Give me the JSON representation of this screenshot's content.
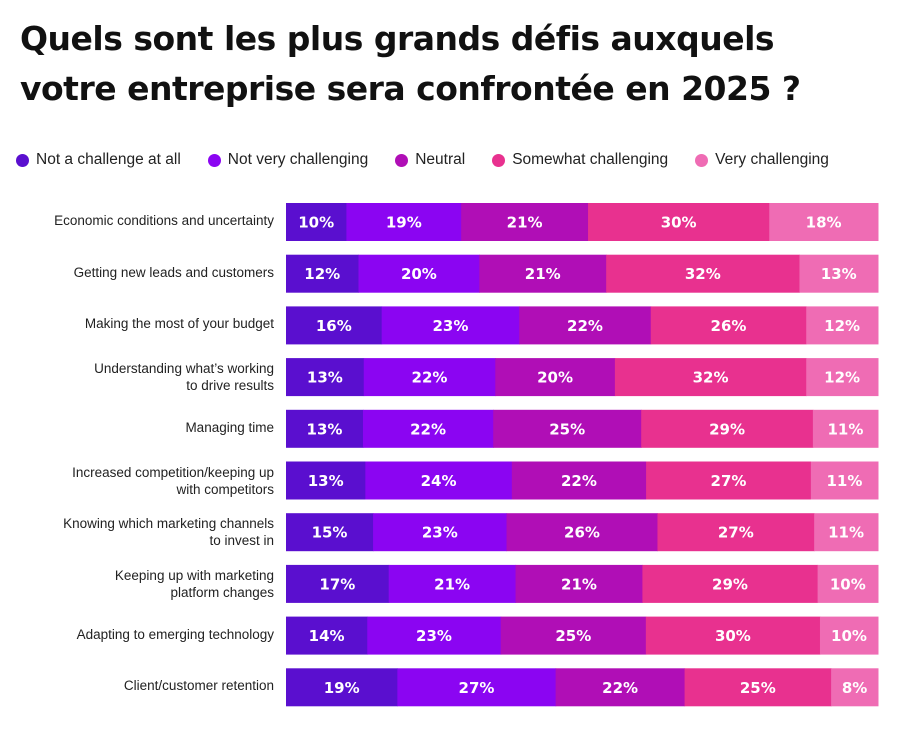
{
  "title_line1": "Quels sont les plus grands défis auxquels",
  "title_line2": "votre entreprise sera confrontée en 2025 ?",
  "chart_data": {
    "type": "bar",
    "orientation": "horizontal",
    "stacked": true,
    "legend_position": "top",
    "grid": false,
    "categories": [
      "Economic conditions and uncertainty",
      "Getting new leads and customers",
      "Making the most of your budget",
      "Understanding what’s working to drive results",
      "Managing time",
      "Increased competition/keeping up with competitors",
      "Knowing which marketing channels to invest in",
      "Keeping up with marketing platform changes",
      "Adapting to emerging technology",
      "Client/customer retention"
    ],
    "series": [
      {
        "name": "Not a challenge at all",
        "color": "#5a0fcf",
        "values": [
          10,
          12,
          16,
          13,
          13,
          13,
          15,
          17,
          14,
          19
        ]
      },
      {
        "name": "Not very challenging",
        "color": "#8b05f2",
        "values": [
          19,
          20,
          23,
          22,
          22,
          24,
          23,
          21,
          23,
          27
        ]
      },
      {
        "name": "Neutral",
        "color": "#b00eb6",
        "values": [
          21,
          21,
          22,
          20,
          25,
          22,
          26,
          21,
          25,
          22
        ]
      },
      {
        "name": "Somewhat challenging",
        "color": "#e8318f",
        "values": [
          30,
          32,
          26,
          32,
          29,
          27,
          27,
          29,
          30,
          25
        ]
      },
      {
        "name": "Very challenging",
        "color": "#ef6cb4",
        "values": [
          18,
          13,
          12,
          12,
          11,
          11,
          11,
          10,
          10,
          8
        ]
      }
    ],
    "value_suffix": "%"
  }
}
